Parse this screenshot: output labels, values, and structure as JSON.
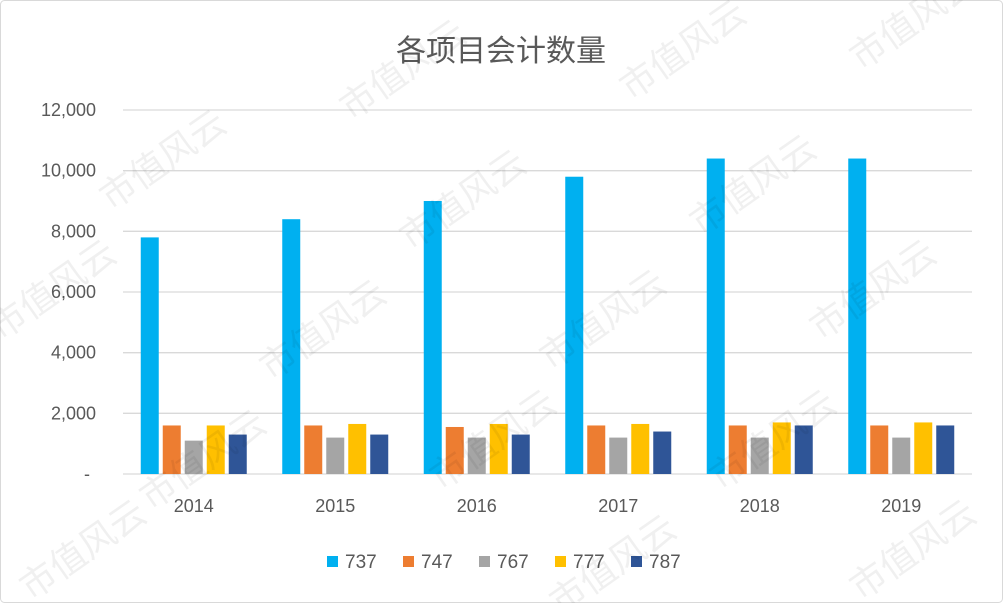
{
  "watermark": "市值风云",
  "chart_data": {
    "type": "bar",
    "title": "各项目会计数量",
    "xlabel": "",
    "ylabel": "",
    "categories": [
      "2014",
      "2015",
      "2016",
      "2017",
      "2018",
      "2019"
    ],
    "series": [
      {
        "name": "737",
        "color": "#00B0F0",
        "values": [
          7800,
          8400,
          9000,
          9800,
          10400,
          10400
        ]
      },
      {
        "name": "747",
        "color": "#ED7D31",
        "values": [
          1600,
          1600,
          1550,
          1600,
          1600,
          1600
        ]
      },
      {
        "name": "767",
        "color": "#A5A5A5",
        "values": [
          1100,
          1200,
          1200,
          1200,
          1200,
          1200
        ]
      },
      {
        "name": "777",
        "color": "#FFC000",
        "values": [
          1600,
          1650,
          1650,
          1650,
          1700,
          1700
        ]
      },
      {
        "name": "787",
        "color": "#2F5597",
        "values": [
          1300,
          1300,
          1300,
          1400,
          1600,
          1600
        ]
      }
    ],
    "ylim": [
      0,
      12000
    ],
    "y_ticks": [
      0,
      2000,
      4000,
      6000,
      8000,
      10000,
      12000
    ],
    "y_tick_labels": [
      "-",
      "2,000",
      "4,000",
      "6,000",
      "8,000",
      "10,000",
      "12,000"
    ],
    "grid": true,
    "legend": "bottom"
  }
}
